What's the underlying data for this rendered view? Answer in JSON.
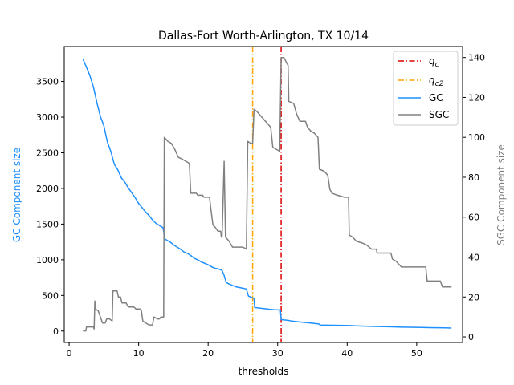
{
  "chart_data": {
    "type": "line",
    "title": "Dallas-Fort Worth-Arlington, TX 10/14",
    "xlabel": "thresholds",
    "ylabel": "GC Component size",
    "y2label": "SGC Component size",
    "xlim": [
      -0.7,
      56.6
    ],
    "ylim": [
      -160,
      3990
    ],
    "y2lim": [
      -2.8,
      145.5
    ],
    "xticks": [
      0,
      10,
      20,
      30,
      40,
      50
    ],
    "yticks": [
      0,
      500,
      1000,
      1500,
      2000,
      2500,
      3000,
      3500
    ],
    "y2ticks": [
      0,
      20,
      40,
      60,
      80,
      100,
      120,
      140
    ],
    "legend_position": "top-right",
    "vlines": [
      {
        "name": "q_c",
        "label_main": "q",
        "label_sub": "c",
        "x": 30.5,
        "color": "#dd0000",
        "style": "dashdot"
      },
      {
        "name": "q_c2",
        "label_main": "q",
        "label_sub": "c2",
        "x": 26.4,
        "color": "#ffa500",
        "style": "dashdot"
      }
    ],
    "series": [
      {
        "name": "GC",
        "axis": "left",
        "color": "#1e90ff",
        "points": [
          [
            2.0,
            3810
          ],
          [
            2.5,
            3700
          ],
          [
            3.0,
            3580
          ],
          [
            3.5,
            3420
          ],
          [
            4.0,
            3200
          ],
          [
            4.5,
            3010
          ],
          [
            5.0,
            2880
          ],
          [
            5.5,
            2650
          ],
          [
            6.0,
            2520
          ],
          [
            6.5,
            2340
          ],
          [
            7.0,
            2260
          ],
          [
            7.5,
            2150
          ],
          [
            8.0,
            2090
          ],
          [
            8.5,
            2010
          ],
          [
            9.0,
            1940
          ],
          [
            9.5,
            1870
          ],
          [
            10.0,
            1790
          ],
          [
            10.5,
            1730
          ],
          [
            11.0,
            1670
          ],
          [
            11.5,
            1620
          ],
          [
            12.0,
            1560
          ],
          [
            12.5,
            1510
          ],
          [
            13.0,
            1480
          ],
          [
            13.5,
            1450
          ],
          [
            13.8,
            1290
          ],
          [
            14.5,
            1250
          ],
          [
            15.0,
            1210
          ],
          [
            15.5,
            1180
          ],
          [
            16.0,
            1150
          ],
          [
            16.5,
            1110
          ],
          [
            17.0,
            1090
          ],
          [
            17.5,
            1060
          ],
          [
            18.0,
            1020
          ],
          [
            18.5,
            1000
          ],
          [
            19.0,
            970
          ],
          [
            19.5,
            950
          ],
          [
            20.0,
            930
          ],
          [
            20.5,
            900
          ],
          [
            21.0,
            880
          ],
          [
            21.5,
            870
          ],
          [
            22.0,
            850
          ],
          [
            22.3,
            780
          ],
          [
            22.6,
            680
          ],
          [
            23.0,
            660
          ],
          [
            23.5,
            640
          ],
          [
            24.0,
            620
          ],
          [
            24.5,
            610
          ],
          [
            25.0,
            600
          ],
          [
            25.5,
            590
          ],
          [
            25.8,
            490
          ],
          [
            26.3,
            470
          ],
          [
            26.6,
            460
          ],
          [
            26.7,
            330
          ],
          [
            27.5,
            320
          ],
          [
            28.0,
            315
          ],
          [
            28.5,
            310
          ],
          [
            29.0,
            305
          ],
          [
            29.5,
            300
          ],
          [
            30.4,
            295
          ],
          [
            30.5,
            160
          ],
          [
            31.5,
            150
          ],
          [
            32.0,
            140
          ],
          [
            33.0,
            130
          ],
          [
            34.0,
            120
          ],
          [
            35.0,
            110
          ],
          [
            35.9,
            100
          ],
          [
            36.1,
            85
          ],
          [
            38.0,
            82
          ],
          [
            40.0,
            78
          ],
          [
            42.0,
            70
          ],
          [
            44.0,
            65
          ],
          [
            46.0,
            60
          ],
          [
            48.0,
            55
          ],
          [
            50.0,
            52
          ],
          [
            52.0,
            48
          ],
          [
            54.0,
            45
          ],
          [
            55.0,
            42
          ]
        ]
      },
      {
        "name": "SGC",
        "axis": "right",
        "color": "#808080",
        "points": [
          [
            2.0,
            3
          ],
          [
            2.4,
            3
          ],
          [
            2.5,
            5
          ],
          [
            3.5,
            5
          ],
          [
            3.6,
            4
          ],
          [
            3.7,
            18
          ],
          [
            3.8,
            14
          ],
          [
            4.2,
            13
          ],
          [
            4.5,
            10
          ],
          [
            4.8,
            7
          ],
          [
            5.2,
            7
          ],
          [
            5.4,
            9
          ],
          [
            5.8,
            9
          ],
          [
            6.2,
            8
          ],
          [
            6.3,
            23
          ],
          [
            6.9,
            23
          ],
          [
            7.1,
            20
          ],
          [
            7.4,
            20
          ],
          [
            7.6,
            17
          ],
          [
            8.2,
            17
          ],
          [
            8.5,
            15
          ],
          [
            9.3,
            15
          ],
          [
            9.6,
            14
          ],
          [
            10.2,
            14
          ],
          [
            10.4,
            13
          ],
          [
            10.6,
            8
          ],
          [
            11.0,
            7
          ],
          [
            11.5,
            6
          ],
          [
            12.0,
            6
          ],
          [
            12.2,
            10
          ],
          [
            12.7,
            9
          ],
          [
            13.0,
            9
          ],
          [
            13.2,
            10
          ],
          [
            13.6,
            10
          ],
          [
            13.7,
            100
          ],
          [
            14.2,
            98
          ],
          [
            14.7,
            97
          ],
          [
            15.2,
            94
          ],
          [
            15.7,
            90
          ],
          [
            16.3,
            89
          ],
          [
            16.8,
            88
          ],
          [
            17.3,
            87
          ],
          [
            17.5,
            72
          ],
          [
            18.3,
            72
          ],
          [
            18.5,
            71
          ],
          [
            19.2,
            71
          ],
          [
            19.4,
            70
          ],
          [
            20.2,
            70
          ],
          [
            20.4,
            64
          ],
          [
            20.7,
            56
          ],
          [
            21.0,
            55
          ],
          [
            21.4,
            53
          ],
          [
            21.8,
            53
          ],
          [
            21.9,
            50
          ],
          [
            22.0,
            50
          ],
          [
            22.3,
            88
          ],
          [
            22.5,
            50
          ],
          [
            23.0,
            48
          ],
          [
            23.5,
            45
          ],
          [
            24.0,
            45
          ],
          [
            24.5,
            45
          ],
          [
            25.0,
            45
          ],
          [
            25.5,
            44
          ],
          [
            25.7,
            98
          ],
          [
            26.1,
            97
          ],
          [
            26.4,
            97
          ],
          [
            26.6,
            114
          ],
          [
            27.0,
            113
          ],
          [
            27.5,
            111
          ],
          [
            28.0,
            109
          ],
          [
            28.5,
            107
          ],
          [
            29.0,
            105
          ],
          [
            29.3,
            95
          ],
          [
            29.8,
            94
          ],
          [
            30.3,
            93
          ],
          [
            30.5,
            140
          ],
          [
            30.9,
            140
          ],
          [
            31.2,
            138
          ],
          [
            31.5,
            136
          ],
          [
            31.6,
            118
          ],
          [
            32.3,
            117
          ],
          [
            32.7,
            112
          ],
          [
            33.2,
            108
          ],
          [
            34.0,
            108
          ],
          [
            34.3,
            105
          ],
          [
            34.8,
            103
          ],
          [
            35.3,
            102
          ],
          [
            35.8,
            100
          ],
          [
            36.0,
            84
          ],
          [
            36.7,
            83
          ],
          [
            37.2,
            81
          ],
          [
            37.5,
            74
          ],
          [
            37.8,
            72
          ],
          [
            38.6,
            71
          ],
          [
            39.6,
            70
          ],
          [
            40.2,
            70
          ],
          [
            40.3,
            51
          ],
          [
            40.8,
            50
          ],
          [
            41.3,
            48
          ],
          [
            42.2,
            47
          ],
          [
            42.8,
            46
          ],
          [
            43.5,
            44
          ],
          [
            44.2,
            44
          ],
          [
            44.3,
            42
          ],
          [
            46.3,
            42
          ],
          [
            46.5,
            39
          ],
          [
            47.0,
            38
          ],
          [
            47.8,
            35
          ],
          [
            51.3,
            35
          ],
          [
            51.5,
            28
          ],
          [
            53.4,
            28
          ],
          [
            53.7,
            25
          ],
          [
            55.0,
            25
          ]
        ]
      }
    ]
  }
}
